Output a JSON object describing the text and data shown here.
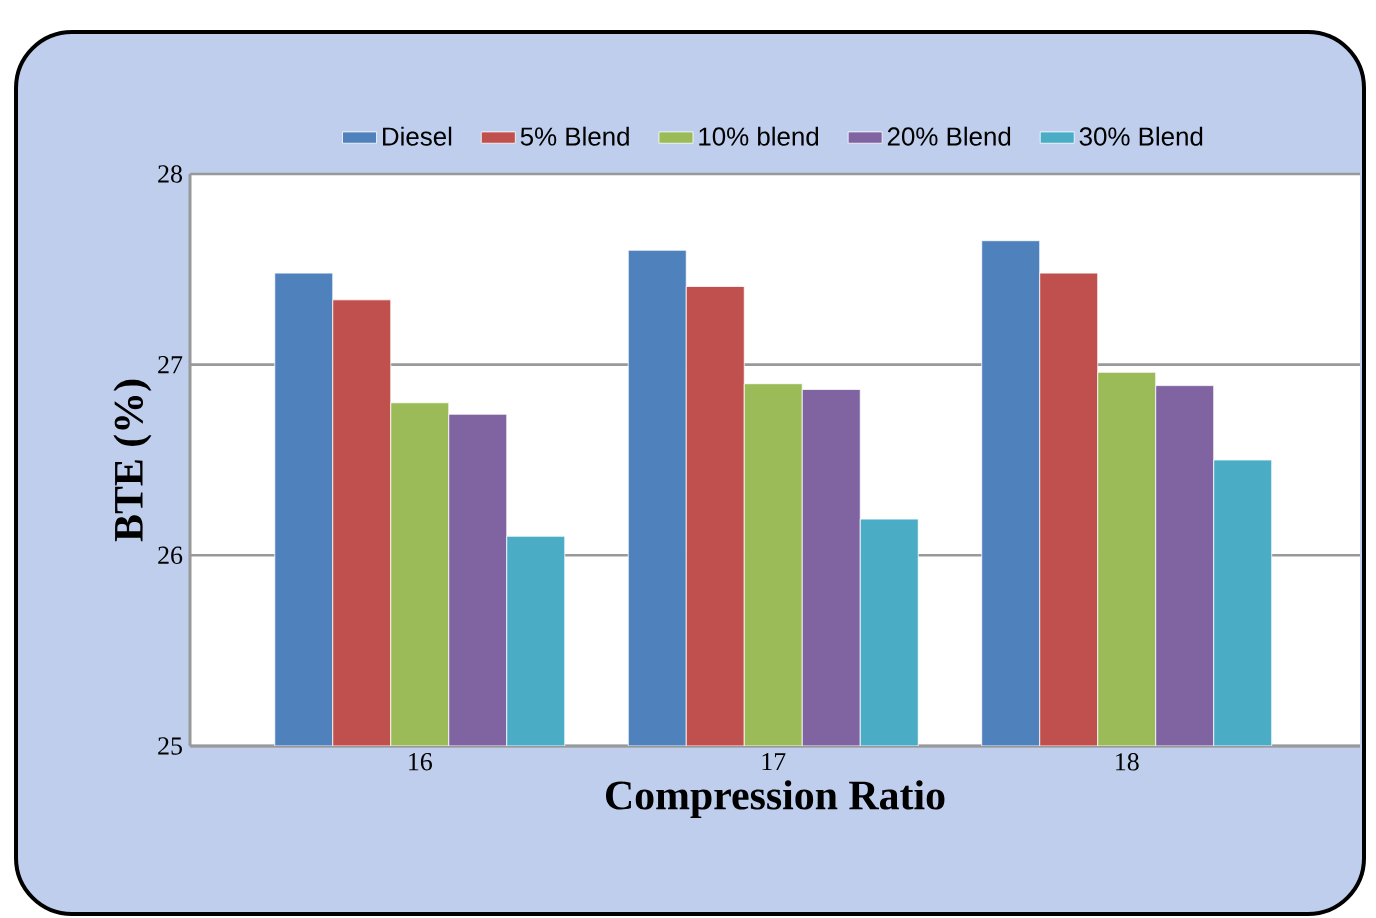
{
  "chart_data": {
    "type": "bar",
    "xlabel": "Compression Ratio",
    "ylabel": "BTE (%)",
    "categories": [
      "16",
      "17",
      "18"
    ],
    "series": [
      {
        "name": "Diesel",
        "color": "#4f81bd",
        "values": [
          27.48,
          27.6,
          27.65
        ]
      },
      {
        "name": "5% Blend",
        "color": "#c0504d",
        "values": [
          27.34,
          27.41,
          27.48
        ]
      },
      {
        "name": "10% blend",
        "color": "#9bbb59",
        "values": [
          26.8,
          26.9,
          26.96
        ]
      },
      {
        "name": "20% Blend",
        "color": "#8064a2",
        "values": [
          26.74,
          26.87,
          26.89
        ]
      },
      {
        "name": "30% Blend",
        "color": "#4bacc6",
        "values": [
          26.1,
          26.19,
          26.5
        ]
      }
    ],
    "ylim": [
      25,
      28
    ],
    "yticks": [
      25,
      26,
      27,
      28
    ],
    "grid": "y",
    "legend": "top"
  }
}
